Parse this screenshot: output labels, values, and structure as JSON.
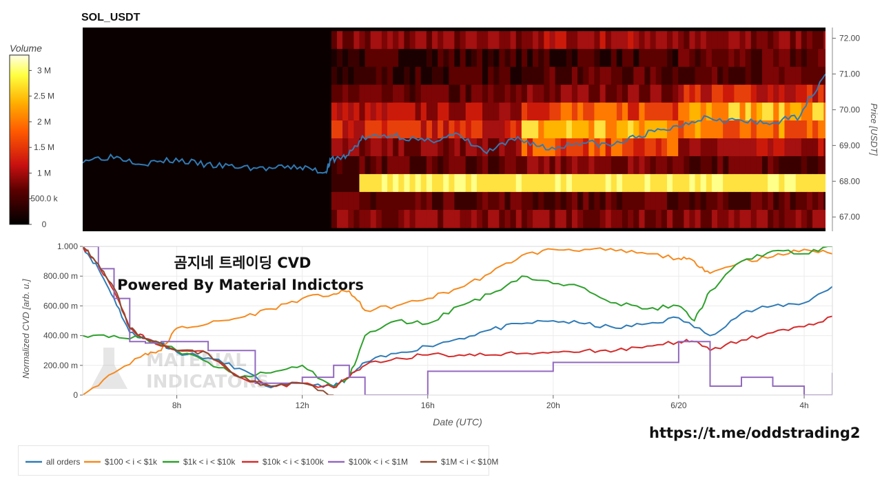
{
  "title": "SOL_USDT",
  "heatmap": {
    "colorbar_label": "Volume",
    "colorbar_ticks": [
      "3 M",
      "2.5 M",
      "2 M",
      "1.5 M",
      "1 M",
      "500.0 k",
      "0"
    ],
    "colorbar_values": [
      3000000,
      2500000,
      2000000,
      1500000,
      1000000,
      500000,
      0
    ],
    "price_axis_label": "Price [USDT]",
    "price_ticks": [
      "72.00",
      "71.00",
      "70.00",
      "69.00",
      "68.00",
      "67.00"
    ]
  },
  "cvd": {
    "ylabel": "Normalized CVD [arb. u.]",
    "xlabel": "Date (UTC)",
    "yticks": [
      "1.000",
      "800.00 m",
      "600.00 m",
      "400.00 m",
      "200.00 m",
      "0"
    ],
    "xticks": [
      "8h",
      "12h",
      "16h",
      "20h",
      "6/20",
      "4h"
    ],
    "overlay_line1": "곰지네 트레이딩 CVD",
    "overlay_line2": "Powered By Material Indictors",
    "watermark_line1": "MATERIAL",
    "watermark_line2": "INDICATORS"
  },
  "footer_url": "https://t.me/oddstrading2",
  "legend": [
    {
      "label": "all orders",
      "color": "#2f7bb6"
    },
    {
      "label": "$100 < i < $1k",
      "color": "#f58a1f"
    },
    {
      "label": "$1k < i < $10k",
      "color": "#2ea02c"
    },
    {
      "label": "$10k < i < $100k",
      "color": "#d42b2b"
    },
    {
      "label": "$100k < i < $1M",
      "color": "#9268be"
    },
    {
      "label": "$1M < i < $10M",
      "color": "#8c4a2f"
    }
  ],
  "chart_data": [
    {
      "type": "heatmap",
      "title": "SOL_USDT",
      "ylabel": "Price [USDT]",
      "ylim": [
        66.6,
        72.3
      ],
      "price_line": {
        "name": "price",
        "color": "#2f7bb6",
        "x_hours": [
          5.0,
          6.0,
          7.0,
          8.0,
          9.0,
          10.0,
          11.0,
          12.0,
          12.8,
          13.0,
          13.5,
          14.0,
          15.0,
          16.0,
          17.0,
          18.0,
          19.0,
          20.0,
          21.0,
          22.0,
          23.0,
          24.0,
          25.0,
          26.0,
          27.0,
          28.0,
          28.9
        ],
        "y": [
          68.6,
          68.7,
          68.5,
          68.6,
          68.45,
          68.4,
          68.35,
          68.4,
          68.25,
          68.6,
          68.7,
          69.2,
          69.3,
          69.1,
          69.3,
          68.8,
          69.2,
          68.9,
          69.1,
          69.0,
          69.3,
          69.5,
          69.8,
          69.7,
          69.6,
          69.8,
          71.0
        ]
      },
      "colorbar": {
        "label": "Volume",
        "range": [
          0,
          3300000
        ]
      }
    },
    {
      "type": "line",
      "xlabel": "Date (UTC)",
      "ylabel": "Normalized CVD [arb. u.]",
      "ylim": [
        0,
        1
      ],
      "x_unit": "hours since 6/19 00:00 UTC",
      "xlim": [
        5.0,
        28.9
      ],
      "series": [
        {
          "name": "all orders",
          "color": "#2f7bb6",
          "x": [
            5.0,
            5.5,
            6.0,
            6.5,
            7.0,
            7.5,
            8.0,
            9.0,
            10.0,
            11.0,
            12.0,
            13.0,
            13.5,
            14.0,
            15.0,
            16.0,
            17.0,
            18.0,
            19.0,
            20.0,
            21.0,
            22.0,
            23.0,
            24.0,
            25.0,
            26.0,
            27.0,
            28.0,
            28.9
          ],
          "y": [
            1.0,
            0.85,
            0.65,
            0.42,
            0.38,
            0.35,
            0.29,
            0.25,
            0.18,
            0.05,
            0.08,
            0.06,
            0.12,
            0.22,
            0.28,
            0.33,
            0.38,
            0.44,
            0.48,
            0.5,
            0.48,
            0.45,
            0.48,
            0.52,
            0.4,
            0.55,
            0.6,
            0.62,
            0.73
          ]
        },
        {
          "name": "$100 < i < $1k",
          "color": "#f58a1f",
          "x": [
            5.0,
            6.0,
            7.0,
            7.5,
            8.0,
            9.0,
            10.0,
            11.0,
            12.0,
            13.0,
            13.5,
            14.0,
            15.0,
            16.0,
            17.0,
            18.0,
            19.0,
            20.0,
            21.0,
            22.0,
            23.0,
            24.0,
            24.5,
            25.0,
            26.0,
            27.0,
            28.0,
            28.9
          ],
          "y": [
            0.0,
            0.15,
            0.28,
            0.3,
            0.45,
            0.48,
            0.52,
            0.58,
            0.65,
            0.68,
            0.7,
            0.57,
            0.6,
            0.65,
            0.72,
            0.82,
            0.94,
            0.98,
            0.98,
            0.97,
            0.95,
            0.92,
            0.9,
            0.82,
            0.9,
            0.93,
            0.98,
            0.95
          ]
        },
        {
          "name": "$1k < i < $10k",
          "color": "#2ea02c",
          "x": [
            5.0,
            6.0,
            7.0,
            8.0,
            9.0,
            10.0,
            11.0,
            12.0,
            13.0,
            13.5,
            14.0,
            15.0,
            16.0,
            17.0,
            18.0,
            19.0,
            20.0,
            21.0,
            22.0,
            23.0,
            24.0,
            24.5,
            25.0,
            26.0,
            27.0,
            28.0,
            28.9
          ],
          "y": [
            0.4,
            0.4,
            0.38,
            0.3,
            0.22,
            0.12,
            0.15,
            0.2,
            0.05,
            0.12,
            0.4,
            0.5,
            0.48,
            0.6,
            0.68,
            0.8,
            0.75,
            0.72,
            0.62,
            0.58,
            0.6,
            0.5,
            0.7,
            0.9,
            0.97,
            0.95,
            1.0
          ]
        },
        {
          "name": "$10k < i < $100k",
          "color": "#d42b2b",
          "x": [
            5.0,
            5.5,
            6.0,
            6.5,
            7.0,
            8.0,
            9.0,
            10.0,
            11.0,
            12.0,
            13.0,
            13.5,
            14.0,
            15.0,
            16.0,
            17.0,
            18.0,
            19.0,
            20.0,
            21.0,
            22.0,
            23.0,
            24.0,
            24.5,
            25.0,
            26.0,
            27.0,
            28.0,
            28.9
          ],
          "y": [
            1.0,
            0.88,
            0.7,
            0.45,
            0.38,
            0.3,
            0.28,
            0.12,
            0.06,
            0.08,
            0.05,
            0.12,
            0.2,
            0.25,
            0.27,
            0.27,
            0.27,
            0.28,
            0.29,
            0.3,
            0.3,
            0.33,
            0.36,
            0.36,
            0.3,
            0.37,
            0.42,
            0.46,
            0.53
          ]
        },
        {
          "name": "$100k < i < $1M",
          "color": "#9268be",
          "x": [
            5.0,
            5.5,
            6.0,
            6.5,
            7.0,
            7.5,
            8.0,
            9.0,
            10.0,
            10.5,
            11.0,
            12.0,
            13.0,
            13.5,
            14.0,
            15.5,
            16.0,
            17.0,
            18.0,
            19.0,
            20.0,
            21.0,
            22.0,
            23.0,
            24.0,
            24.5,
            25.0,
            26.0,
            27.0,
            28.0,
            28.9
          ],
          "y": [
            1.0,
            0.85,
            0.65,
            0.36,
            0.35,
            0.36,
            0.36,
            0.3,
            0.3,
            0.08,
            0.08,
            0.12,
            0.2,
            0.12,
            0.0,
            0.0,
            0.16,
            0.16,
            0.16,
            0.16,
            0.22,
            0.22,
            0.22,
            0.22,
            0.36,
            0.36,
            0.06,
            0.12,
            0.06,
            0.0,
            0.15
          ]
        },
        {
          "name": "$1M < i < $10M",
          "color": "#8c4a2f",
          "x": [
            5.0,
            5.5,
            6.0,
            6.5,
            7.0,
            8.0,
            9.0,
            10.0,
            11.0,
            12.0,
            13.0
          ],
          "y": [
            1.0,
            0.88,
            0.72,
            0.45,
            0.38,
            0.3,
            0.28,
            0.12,
            0.06,
            0.08,
            0.0
          ]
        }
      ]
    }
  ]
}
